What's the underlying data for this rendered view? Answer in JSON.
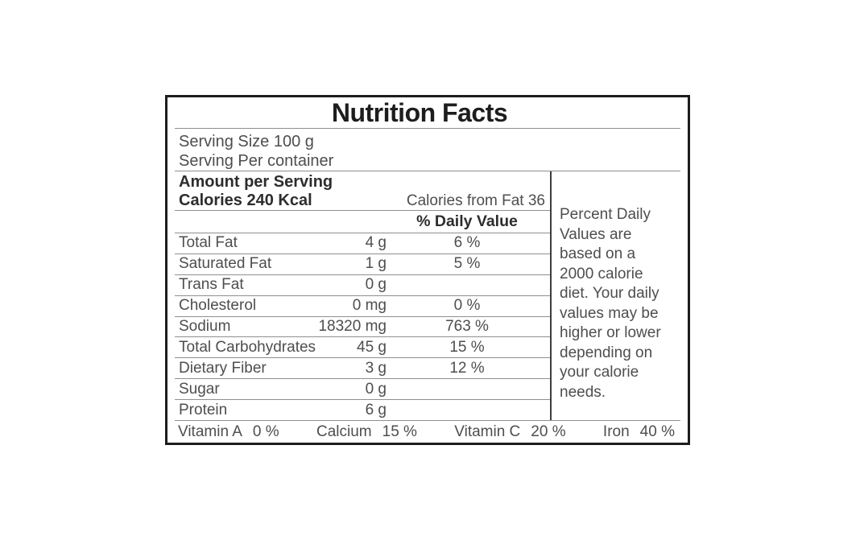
{
  "colors": {
    "border": "#1d1d1d",
    "title_text": "#1d1d1d",
    "heading_text": "#2d2d2d",
    "body_text": "#4e4e4e",
    "separator_line": "#8f8f8f",
    "column_divider": "#3d3d3d",
    "background": "#ffffff"
  },
  "label": {
    "title": "Nutrition Facts",
    "serving_size": "Serving Size 100 g",
    "serving_per_container": "Serving Per container",
    "amount_per_serving": "Amount per Serving",
    "calories": "Calories 240 Kcal",
    "calories_from_fat": "Calories from Fat 36",
    "daily_value_header": "% Daily Value",
    "nutrients": [
      {
        "name": "Total Fat",
        "amount": "4 g",
        "dv": "6 %"
      },
      {
        "name": "Saturated Fat",
        "amount": "1 g",
        "dv": "5 %"
      },
      {
        "name": "Trans Fat",
        "amount": "0 g",
        "dv": ""
      },
      {
        "name": "Cholesterol",
        "amount": "0 mg",
        "dv": "0 %"
      },
      {
        "name": "Sodium",
        "amount": "18320 mg",
        "dv": "763 %"
      },
      {
        "name": "Total Carbohydrates",
        "amount": "45 g",
        "dv": "15 %"
      },
      {
        "name": "Dietary Fiber",
        "amount": "3 g",
        "dv": "12 %"
      },
      {
        "name": "Sugar",
        "amount": "0 g",
        "dv": ""
      },
      {
        "name": "Protein",
        "amount": "6 g",
        "dv": ""
      }
    ],
    "footnote": "Percent Daily Values are based on a 2000 calorie diet. Your daily values may be higher or lower depending on your calorie needs.",
    "vitamins": [
      {
        "name": "Vitamin A",
        "value": "0 %"
      },
      {
        "name": "Calcium",
        "value": "15 %"
      },
      {
        "name": "Vitamin C",
        "value": "20 %"
      },
      {
        "name": "Iron",
        "value": "40 %"
      }
    ]
  }
}
